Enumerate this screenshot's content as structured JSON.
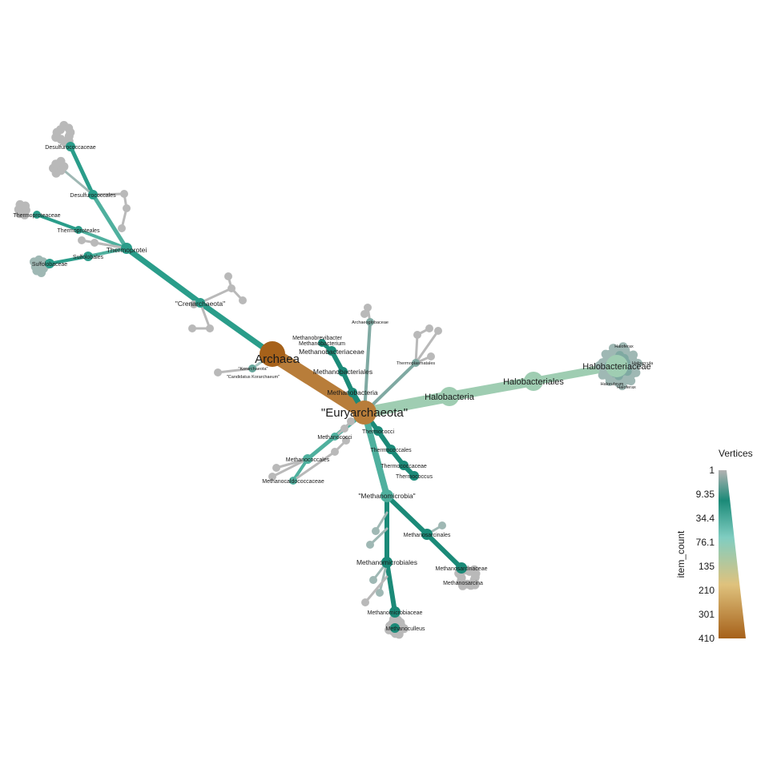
{
  "chart_data": {
    "type": "tree",
    "root": "Archaea",
    "labels": [
      {
        "key": "archaea",
        "text": "Archaea",
        "weight": "large"
      },
      {
        "key": "eury",
        "text": "\"Euryarchaeota\"",
        "weight": "large"
      },
      {
        "key": "crenarch",
        "text": "\"Crenarchaeota\"",
        "weight": "small"
      },
      {
        "key": "thermoprotei",
        "text": "Thermoprotei",
        "weight": "small"
      },
      {
        "key": "desulfurococcaceae",
        "text": "Desulfurococcaceae",
        "weight": "tiny"
      },
      {
        "key": "desulfurococcales",
        "text": "Desulfurococcales",
        "weight": "tiny"
      },
      {
        "key": "thermoproteaceae",
        "text": "Thermoproteaceae",
        "weight": "tiny"
      },
      {
        "key": "thermoproteales",
        "text": "Thermoproteales",
        "weight": "tiny"
      },
      {
        "key": "sulfolobales",
        "text": "Sulfolobales",
        "weight": "tiny"
      },
      {
        "key": "sulfolobaceae",
        "text": "Sulfolobaceae",
        "weight": "tiny"
      },
      {
        "key": "korarch",
        "text": "\"Korarchaeota\"",
        "weight": "micro"
      },
      {
        "key": "candkor",
        "text": "\"Candidatus Korarchaeum\"",
        "weight": "micro"
      },
      {
        "key": "methanobrevibacter",
        "text": "Methanobrevibacter",
        "weight": "tiny"
      },
      {
        "key": "methanobacterium",
        "text": "Methanobacterium",
        "weight": "tiny"
      },
      {
        "key": "methanobacteriaceae",
        "text": "Methanobacteriaceae",
        "weight": "small"
      },
      {
        "key": "methanobacteriales",
        "text": "Methanobacteriales",
        "weight": "small"
      },
      {
        "key": "methanobacteria",
        "text": "Methanobacteria",
        "weight": "small"
      },
      {
        "key": "archaeoglobaceae",
        "text": "Archaeoglobaceae",
        "weight": "micro"
      },
      {
        "key": "thermoplasmatales",
        "text": "Thermoplasmatales",
        "weight": "micro"
      },
      {
        "key": "halobacteria",
        "text": "Halobacteria",
        "weight": "medium"
      },
      {
        "key": "halobacteriales",
        "text": "Halobacteriales",
        "weight": "medium"
      },
      {
        "key": "halobacteriaceae",
        "text": "Halobacteriaceae",
        "weight": "medium"
      },
      {
        "key": "haloferax",
        "text": "Haloferax",
        "weight": "micro"
      },
      {
        "key": "haloarcula",
        "text": "Haloarcula",
        "weight": "micro"
      },
      {
        "key": "halorubrum",
        "text": "Halorubrum",
        "weight": "micro"
      },
      {
        "key": "haloferax2",
        "text": "Haloferax",
        "weight": "micro"
      },
      {
        "key": "thermococci",
        "text": "Thermococci",
        "weight": "tiny"
      },
      {
        "key": "thermococcales",
        "text": "Thermococcales",
        "weight": "tiny"
      },
      {
        "key": "thermococcaceae",
        "text": "Thermococcaceae",
        "weight": "tiny"
      },
      {
        "key": "thermococcus",
        "text": "Thermococcus",
        "weight": "tiny"
      },
      {
        "key": "methanococci",
        "text": "Methanococci",
        "weight": "tiny"
      },
      {
        "key": "methanococcales",
        "text": "Methanococcales",
        "weight": "tiny"
      },
      {
        "key": "methanocaldococcaceae",
        "text": "Methanocaldococcaceae",
        "weight": "tiny"
      },
      {
        "key": "methanomicrobia",
        "text": "\"Methanomicrobia\"",
        "weight": "small"
      },
      {
        "key": "methanosarcinales",
        "text": "Methanosarcinales",
        "weight": "tiny"
      },
      {
        "key": "methanosarcinaceae",
        "text": "Methanosarcinaceae",
        "weight": "tiny"
      },
      {
        "key": "methanosarcina",
        "text": "Methanosarcina",
        "weight": "tiny"
      },
      {
        "key": "methanomicrobiales",
        "text": "Methanomicrobiales",
        "weight": "small"
      },
      {
        "key": "methanomicrobiaceae",
        "text": "Methanomicrobiaceae",
        "weight": "tiny"
      },
      {
        "key": "methanoculleus",
        "text": "Methanoculleus",
        "weight": "tiny"
      }
    ],
    "edges": [
      {
        "from": "Archaea",
        "to": "\"Euryarchaeota\"",
        "item_count": 380
      },
      {
        "from": "Archaea",
        "to": "\"Crenarchaeota\"",
        "item_count": 40
      },
      {
        "from": "Archaea",
        "to": "\"Korarchaeota\"",
        "item_count": 2
      },
      {
        "from": "\"Euryarchaeota\"",
        "to": "Halobacteria",
        "item_count": 150
      },
      {
        "from": "\"Euryarchaeota\"",
        "to": "Methanobacteria",
        "item_count": 25
      },
      {
        "from": "\"Euryarchaeota\"",
        "to": "\"Methanomicrobia\"",
        "item_count": 60
      },
      {
        "from": "\"Euryarchaeota\"",
        "to": "Thermococci",
        "item_count": 20
      },
      {
        "from": "\"Euryarchaeota\"",
        "to": "Methanococci",
        "item_count": 18
      },
      {
        "from": "\"Crenarchaeota\"",
        "to": "Thermoprotei",
        "item_count": 38
      }
    ],
    "legend": {
      "title": "Vertices",
      "axis_label": "item_count",
      "ticks": [
        "1",
        "9.35",
        "34.4",
        "76.1",
        "135",
        "210",
        "301",
        "410"
      ],
      "colors": [
        "#b3b3b3",
        "#1b8a78",
        "#80cdc1",
        "#dfc27d",
        "#a6611a"
      ]
    }
  }
}
